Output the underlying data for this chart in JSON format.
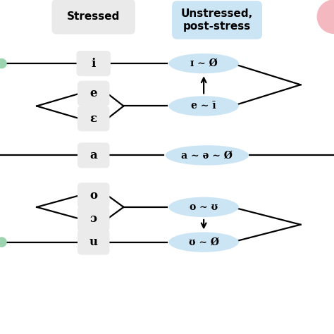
{
  "bg_color": "#ffffff",
  "stressed_label": "Stressed",
  "unstressed_label": "Unstressed,\npost-stress",
  "stressed_box_color": "#ebebeb",
  "unstressed_box_color": "#cce5f5",
  "unstressed_i": "ɪ ∼ Ø",
  "unstressed_e": "e ∼ ī",
  "unstressed_a": "a ∼ ə ∼ Ø",
  "unstressed_o": "o ∼ ʊ",
  "unstressed_u": "ʊ ∼ Ø",
  "vowel_i": "i",
  "vowel_e": "e",
  "vowel_eps": "ε",
  "vowel_a": "a",
  "vowel_o": "o",
  "vowel_open_o": "ɔ",
  "vowel_u": "u",
  "lw": 1.6,
  "circle_color_green": "#9dd4b0",
  "circle_color_pink": "#f4b8c0"
}
